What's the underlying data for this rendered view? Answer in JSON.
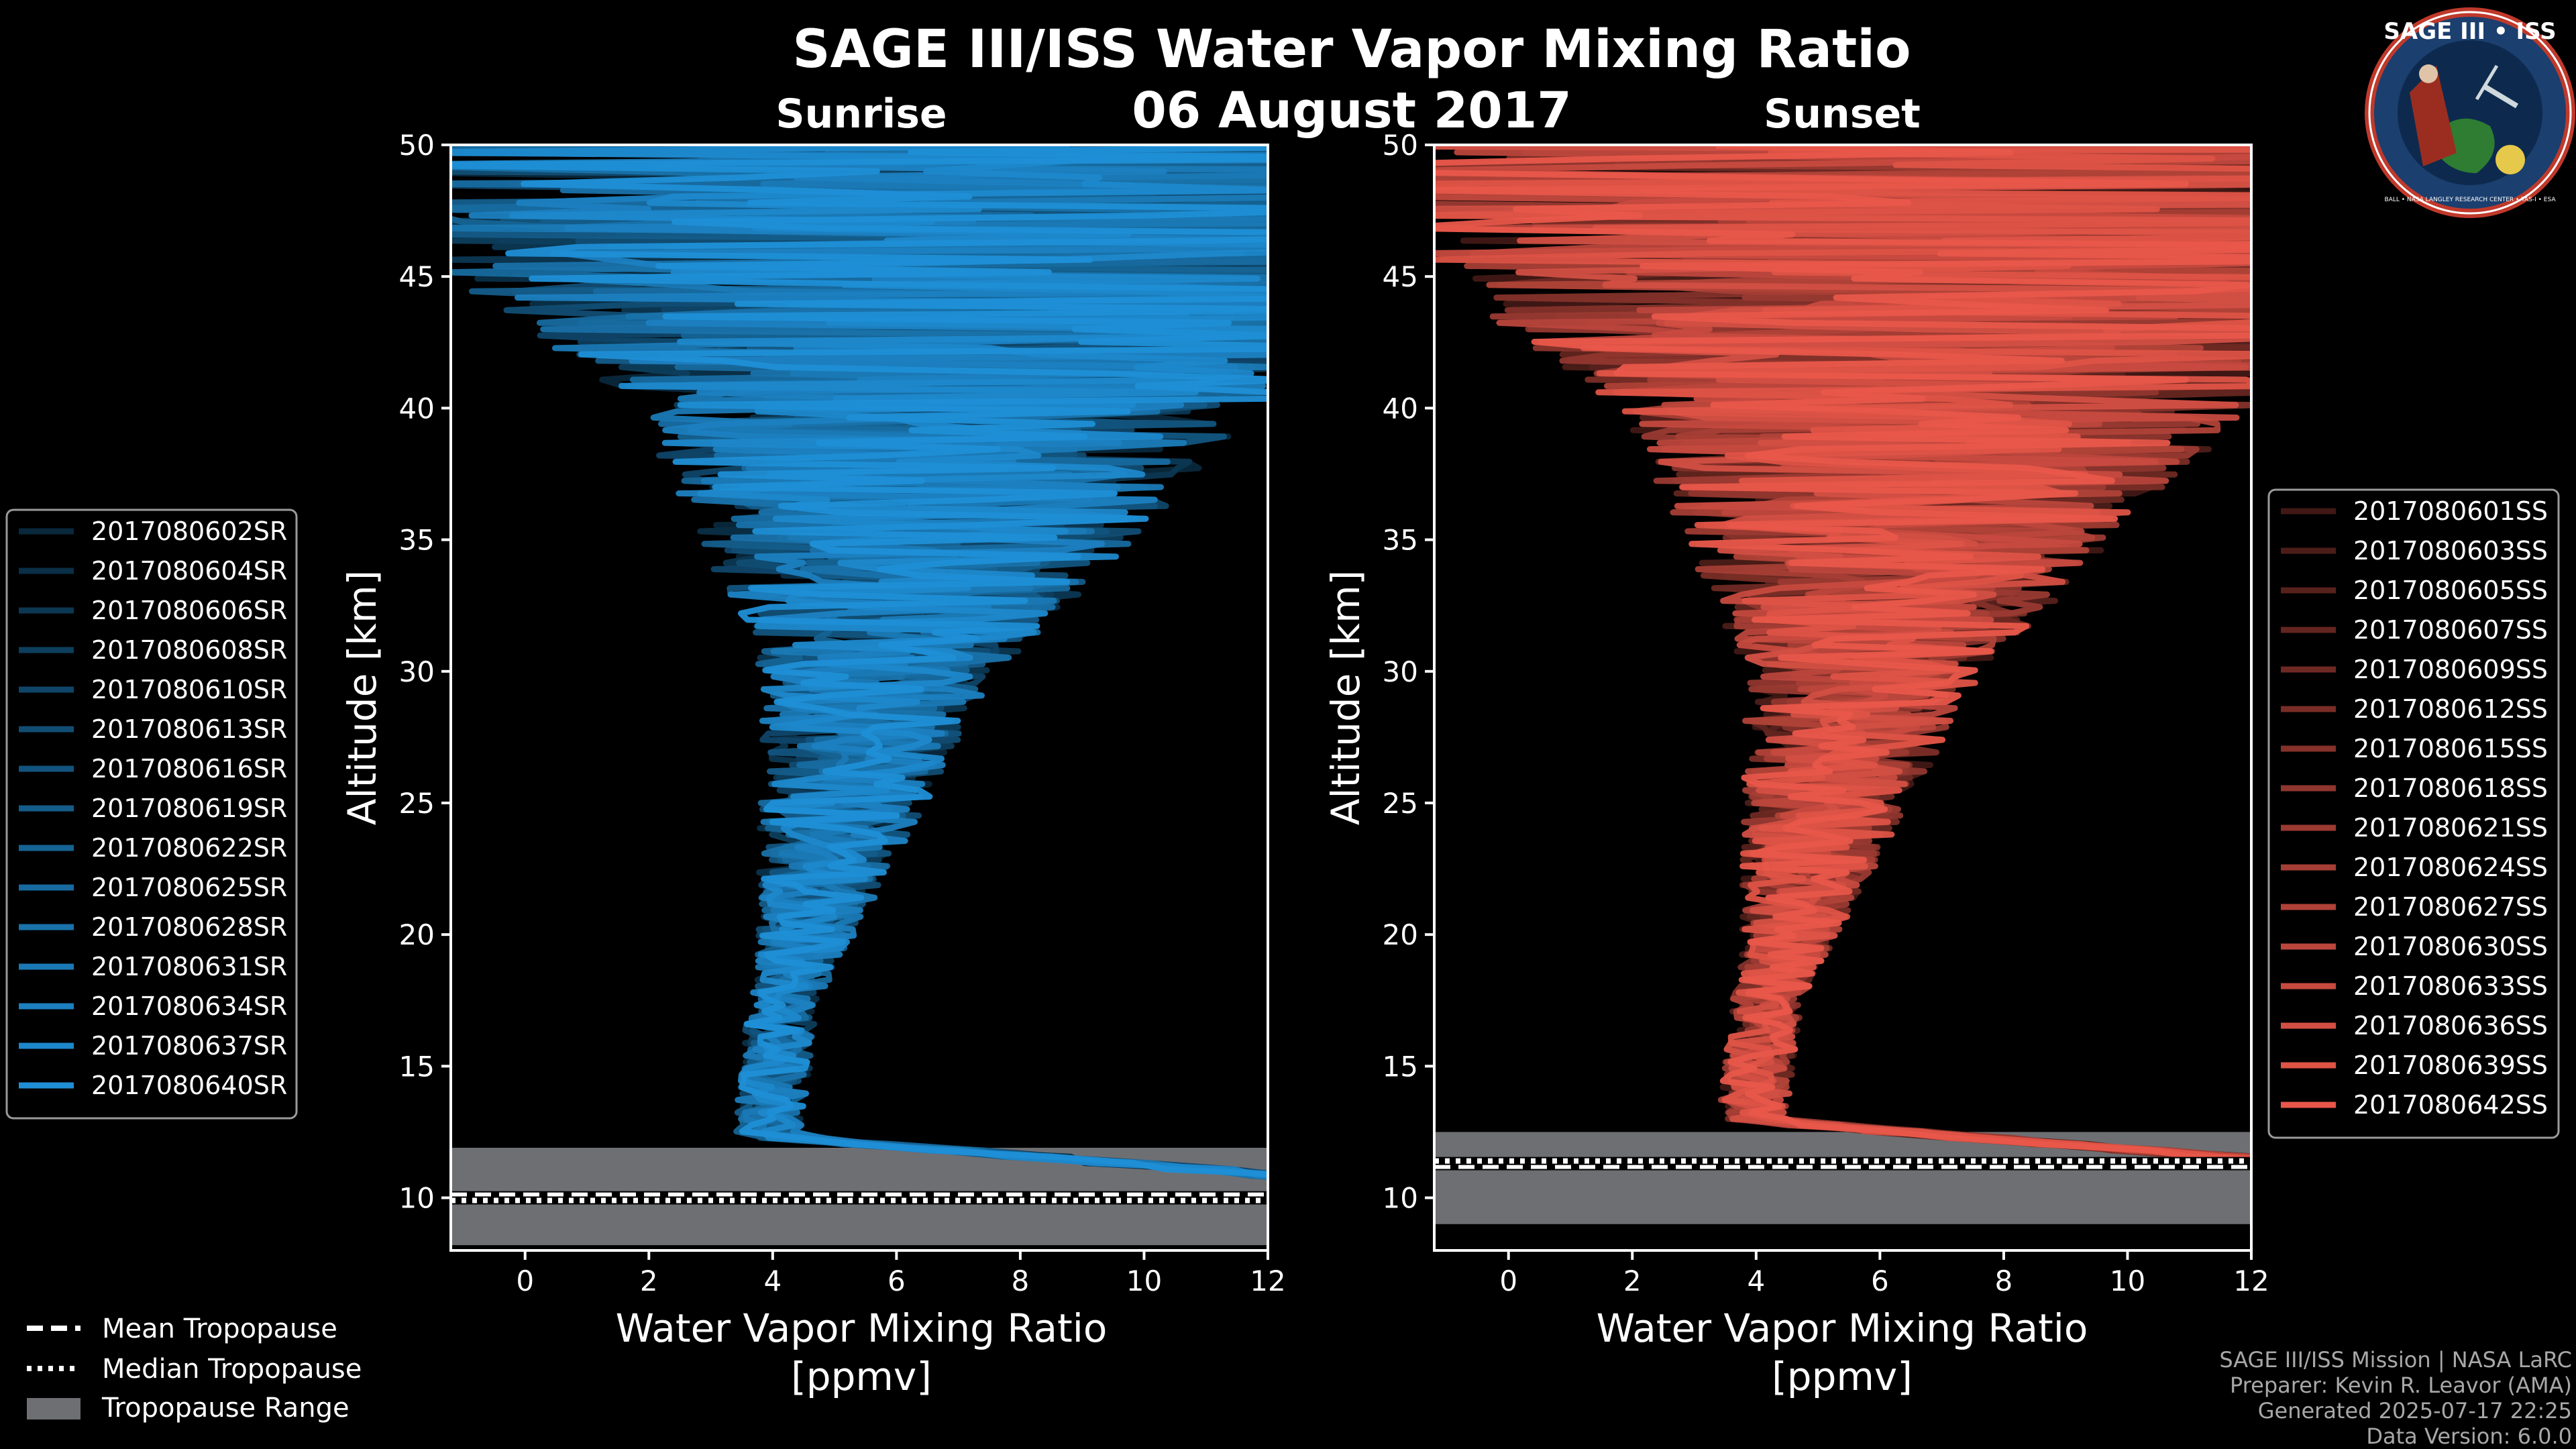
{
  "title": "SAGE III/ISS Water Vapor Mixing Ratio",
  "date": "06 August 2017",
  "logo": {
    "line1": "SAGE III • ISS",
    "ring_text": "BALL • NASA LANGLEY RESEARCH CENTER • TAS-I • ESA"
  },
  "footer": [
    "SAGE III/ISS Mission | NASA LaRC",
    "Preparer: Kevin R. Leavor (AMA)",
    "Generated 2025-07-17 22:25",
    "Data Version: 6.0.0"
  ],
  "bottom_legend": [
    {
      "label": "Mean Tropopause",
      "style": "dashed"
    },
    {
      "label": "Median Tropopause",
      "style": "dotted"
    },
    {
      "label": "Tropopause Range",
      "style": "patch"
    }
  ],
  "chart_data": [
    {
      "type": "line",
      "subtitle": "Sunrise",
      "xlabel": "Water Vapor Mixing Ratio\n[ppmv]",
      "ylabel": "Altitude [km]",
      "xlim": [
        -1.2,
        12
      ],
      "ylim": [
        8,
        50
      ],
      "xticks": [
        0,
        2,
        4,
        6,
        8,
        10,
        12
      ],
      "yticks": [
        10,
        15,
        20,
        25,
        30,
        35,
        40,
        45,
        50
      ],
      "color": "#1f8fd6",
      "seed": 7,
      "tropopause_range": [
        8.2,
        11.9
      ],
      "mean_tropopause": 10.1,
      "median_tropopause": 9.9,
      "legend_position": "left",
      "series": [
        "2017080602SR",
        "2017080604SR",
        "2017080606SR",
        "2017080608SR",
        "2017080610SR",
        "2017080613SR",
        "2017080616SR",
        "2017080619SR",
        "2017080622SR",
        "2017080625SR",
        "2017080628SR",
        "2017080631SR",
        "2017080634SR",
        "2017080637SR",
        "2017080640SR"
      ]
    },
    {
      "type": "line",
      "subtitle": "Sunset",
      "xlabel": "Water Vapor Mixing Ratio\n[ppmv]",
      "ylabel": "Altitude [km]",
      "xlim": [
        -1.2,
        12
      ],
      "ylim": [
        8,
        50
      ],
      "xticks": [
        0,
        2,
        4,
        6,
        8,
        10,
        12
      ],
      "yticks": [
        10,
        15,
        20,
        25,
        30,
        35,
        40,
        45,
        50
      ],
      "color": "#e8574a",
      "seed": 13,
      "tropopause_range": [
        9.0,
        12.5
      ],
      "mean_tropopause": 11.2,
      "median_tropopause": 11.4,
      "legend_position": "right",
      "series": [
        "2017080601SS",
        "2017080603SS",
        "2017080605SS",
        "2017080607SS",
        "2017080609SS",
        "2017080612SS",
        "2017080615SS",
        "2017080618SS",
        "2017080621SS",
        "2017080624SS",
        "2017080627SS",
        "2017080630SS",
        "2017080633SS",
        "2017080636SS",
        "2017080639SS",
        "2017080642SS"
      ]
    }
  ]
}
